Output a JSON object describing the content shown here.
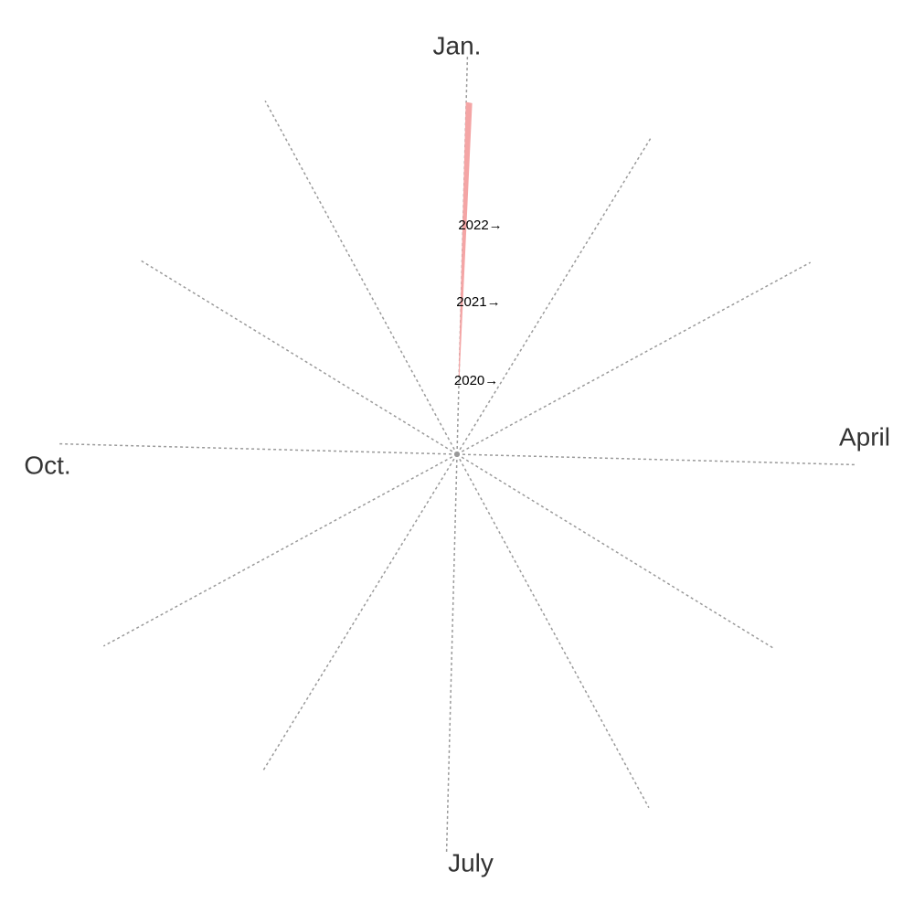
{
  "chart_data": {
    "type": "area",
    "subtype": "spiral",
    "title": "",
    "month_labels": [
      {
        "month": 1,
        "label": "Jan."
      },
      {
        "month": 4,
        "label": "April"
      },
      {
        "month": 7,
        "label": "July"
      },
      {
        "month": 10,
        "label": "Oct."
      }
    ],
    "year_labels": [
      {
        "year": 2020,
        "label": "2020→"
      },
      {
        "year": 2021,
        "label": "2021→"
      },
      {
        "year": 2022,
        "label": "2022→"
      }
    ],
    "x": [
      "2020-01",
      "2021-01",
      "2022-01",
      "2022-12"
    ],
    "values": [
      0,
      0,
      1,
      1
    ],
    "spokes": 12,
    "grid": true,
    "colors": {
      "series": "#f4a5a5",
      "grid": "#9a9a9a",
      "text": "#333333"
    }
  }
}
